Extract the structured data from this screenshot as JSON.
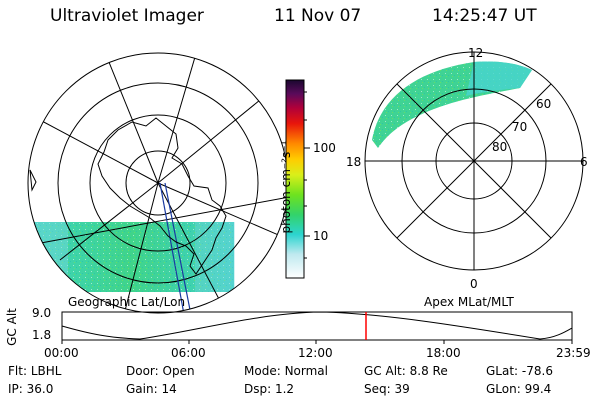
{
  "header": {
    "title": "Ultraviolet Imager",
    "date": "11 Nov 07",
    "time": "14:25:47 UT"
  },
  "panels": {
    "left_label": "Geographic Lat/Lon",
    "right_label": "Apex MLat/MLT"
  },
  "colorbar": {
    "label": "photon cm⁻²s⁻¹",
    "ticks": [
      "100",
      "10"
    ]
  },
  "polar_right": {
    "mlt_labels": {
      "top": "12",
      "left": "18",
      "right": "6",
      "bottom": "0"
    },
    "lat_labels": [
      "60",
      "70",
      "80"
    ]
  },
  "orbit": {
    "ylabel": "GC Alt",
    "y_ticks": [
      "9.0",
      "1.8"
    ],
    "x_ticks": [
      "00:00",
      "06:00",
      "12:00",
      "18:00",
      "23:59"
    ],
    "marker_color": "#ff0000"
  },
  "info": {
    "row1": [
      {
        "k": "Flt:",
        "v": "LBHL"
      },
      {
        "k": "Door:",
        "v": "Open"
      },
      {
        "k": "Mode:",
        "v": "Normal"
      },
      {
        "k": "GC Alt:",
        "v": "8.8 Re"
      },
      {
        "k": "GLat:",
        "v": "-78.6"
      }
    ],
    "row2": [
      {
        "k": "IP:",
        "v": "36.0"
      },
      {
        "k": "Gain:",
        "v": "14"
      },
      {
        "k": "Dsp:",
        "v": "1.2"
      },
      {
        "k": "Seq:",
        "v": "39"
      },
      {
        "k": "GLon:",
        "v": "99.4"
      }
    ]
  }
}
